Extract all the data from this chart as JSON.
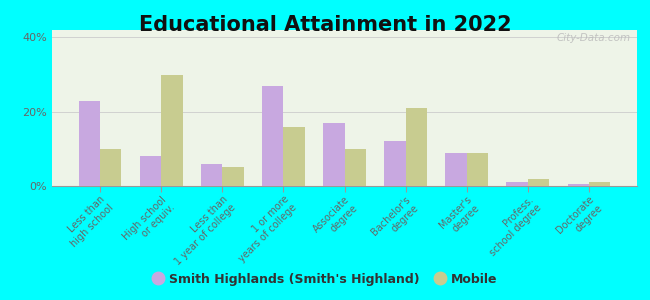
{
  "title": "Educational Attainment in 2022",
  "categories": [
    "Less than\nhigh school",
    "High school\nor equiv.",
    "Less than\n1 year of college",
    "1 or more\nyears of college",
    "Associate\ndegree",
    "Bachelor's\ndegree",
    "Master's\ndegree",
    "Profess.\nschool degree",
    "Doctorate\ndegree"
  ],
  "smith_values": [
    23,
    8,
    6,
    27,
    17,
    12,
    9,
    1,
    0.5
  ],
  "mobile_values": [
    10,
    30,
    5,
    16,
    10,
    21,
    9,
    2,
    1
  ],
  "smith_color": "#c8a8e0",
  "mobile_color": "#c8cc90",
  "smith_label": "Smith Highlands (Smith's Highland)",
  "mobile_label": "Mobile",
  "ylim": [
    0,
    42
  ],
  "yticks": [
    0,
    20,
    40
  ],
  "ytick_labels": [
    "0%",
    "20%",
    "40%"
  ],
  "bg_color": "#00ffff",
  "plot_bg": "#eef4e8",
  "watermark": "City-Data.com",
  "title_fontsize": 15,
  "axis_fontsize": 7,
  "legend_fontsize": 9
}
